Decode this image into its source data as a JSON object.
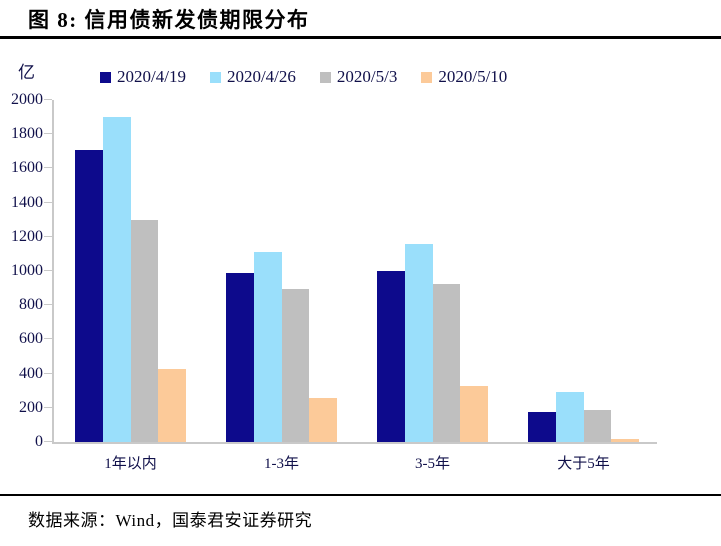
{
  "title": "图 8: 信用债新发债期限分布",
  "source": "数据来源：Wind，国泰君安证券研究",
  "chart_data": {
    "type": "bar",
    "title": "信用债新发债期限分布",
    "unit_label": "亿",
    "categories": [
      "1年以内",
      "1-3年",
      "3-5年",
      "大于5年"
    ],
    "series": [
      {
        "name": "2020/4/19",
        "color": "#0D0A8C",
        "values": [
          1710,
          990,
          1000,
          175
        ]
      },
      {
        "name": "2020/4/26",
        "color": "#9ADFFB",
        "values": [
          1900,
          1110,
          1160,
          290
        ]
      },
      {
        "name": "2020/5/3",
        "color": "#BFBFBF",
        "values": [
          1300,
          895,
          925,
          185
        ]
      },
      {
        "name": "2020/5/10",
        "color": "#FCCA99",
        "values": [
          425,
          260,
          330,
          20
        ]
      }
    ],
    "ylim": [
      0,
      2000
    ],
    "ytick_step": 200,
    "legend_position": "top",
    "grid": false,
    "axis_color": "#C9C9C9",
    "text_color": "#10104A"
  }
}
